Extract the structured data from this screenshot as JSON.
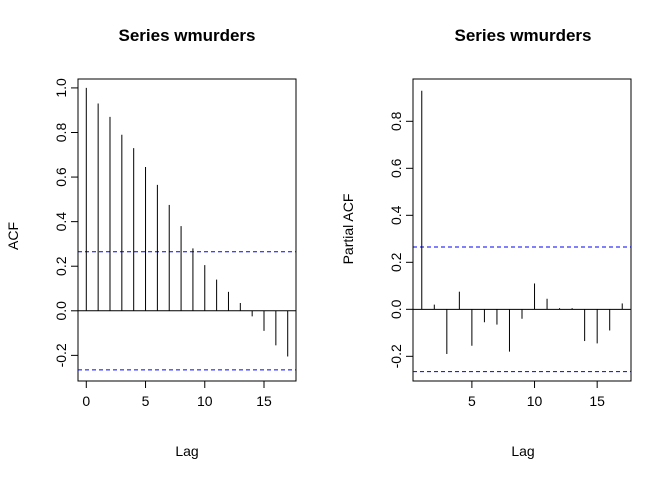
{
  "chart_data": [
    {
      "type": "bar",
      "title": "Series  wmurders",
      "xlabel": "Lag",
      "ylabel": "ACF",
      "xlim": [
        -0.7,
        17.7
      ],
      "ylim": [
        -0.315,
        1.04
      ],
      "xticks": [
        0,
        5,
        10,
        15
      ],
      "yticks": [
        -0.2,
        0.0,
        0.2,
        0.4,
        0.6,
        0.8,
        1.0
      ],
      "ytick_labels": [
        "-0.2",
        "0.0",
        "0.2",
        "0.4",
        "0.6",
        "0.8",
        "1.0"
      ],
      "confidence_bound": 0.265,
      "confidence_color": "#0000ff",
      "series": [
        {
          "lags": [
            0,
            1,
            2,
            3,
            4,
            5,
            6,
            7,
            8,
            9,
            10,
            11,
            12,
            13,
            14,
            15,
            16,
            17
          ],
          "values": [
            1.0,
            0.93,
            0.87,
            0.79,
            0.73,
            0.645,
            0.565,
            0.475,
            0.38,
            0.28,
            0.205,
            0.14,
            0.085,
            0.035,
            -0.025,
            -0.09,
            -0.155,
            -0.205
          ]
        }
      ]
    },
    {
      "type": "bar",
      "title": "Series  wmurders",
      "xlabel": "Lag",
      "ylabel": "Partial ACF",
      "xlim": [
        0.3,
        17.7
      ],
      "ylim": [
        -0.305,
        0.98
      ],
      "xticks": [
        5,
        10,
        15
      ],
      "yticks": [
        -0.2,
        0.0,
        0.2,
        0.4,
        0.6,
        0.8
      ],
      "ytick_labels": [
        "-0.2",
        "0.0",
        "0.2",
        "0.4",
        "0.6",
        "0.8"
      ],
      "confidence_bound": 0.265,
      "confidence_color": "#0000ff",
      "series": [
        {
          "lags": [
            1,
            2,
            3,
            4,
            5,
            6,
            7,
            8,
            9,
            10,
            11,
            12,
            13,
            14,
            15,
            16,
            17
          ],
          "values": [
            0.93,
            0.02,
            -0.19,
            0.075,
            -0.155,
            -0.055,
            -0.065,
            -0.18,
            -0.04,
            0.11,
            0.045,
            0.005,
            0.005,
            -0.135,
            -0.145,
            -0.09,
            0.025
          ]
        }
      ]
    }
  ]
}
